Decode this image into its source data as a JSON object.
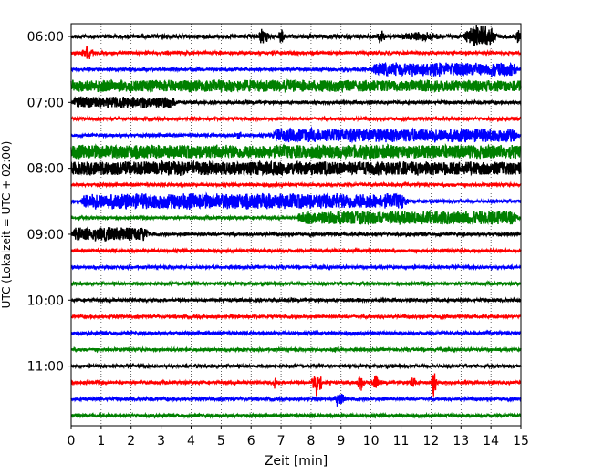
{
  "chart_data": {
    "type": "line",
    "title": "",
    "xlabel": "Zeit  [min]",
    "ylabel": "UTC (Lokalzeit = UTC + 02:00)",
    "xlim": [
      0,
      15
    ],
    "x_ticks": [
      0,
      1,
      2,
      3,
      4,
      5,
      6,
      7,
      8,
      9,
      10,
      11,
      12,
      13,
      14,
      15
    ],
    "y_tick_labels": [
      "06:00",
      "07:00",
      "08:00",
      "09:00",
      "10:00",
      "11:00"
    ],
    "grid": "vertical dotted lines at each minute",
    "trace_interval_minutes": 15,
    "colors": [
      "#000000",
      "#ff0000",
      "#0000ff",
      "#008000"
    ],
    "traces": [
      {
        "start": "06:00",
        "color": "#000000",
        "baseline": 2,
        "segments": [
          [
            6.2,
            6.6,
            9,
            "burst"
          ],
          [
            6.9,
            7.15,
            10,
            "burst"
          ],
          [
            10.2,
            10.5,
            8,
            "burst"
          ],
          [
            10.8,
            12.6,
            5,
            "burst"
          ],
          [
            13.0,
            14.3,
            12,
            "burst"
          ],
          [
            14.8,
            15.0,
            8,
            "burst"
          ]
        ]
      },
      {
        "start": "06:15",
        "color": "#ff0000",
        "baseline": 1.5,
        "segments": [
          [
            0.3,
            0.8,
            7,
            "burst"
          ]
        ]
      },
      {
        "start": "06:30",
        "color": "#0000ff",
        "baseline": 1.5,
        "segments": [
          [
            10.0,
            15.0,
            7,
            "sustained"
          ]
        ]
      },
      {
        "start": "06:45",
        "color": "#008000",
        "baseline": 6,
        "segments": [
          [
            0.0,
            15.0,
            6,
            "sustained"
          ]
        ]
      },
      {
        "start": "07:00",
        "color": "#000000",
        "baseline": 1.5,
        "segments": [
          [
            0.0,
            3.6,
            6,
            "sustained"
          ]
        ]
      },
      {
        "start": "07:15",
        "color": "#ff0000",
        "baseline": 1.5,
        "segments": []
      },
      {
        "start": "07:30",
        "color": "#0000ff",
        "baseline": 1.5,
        "segments": [
          [
            5.5,
            5.7,
            5,
            "burst"
          ],
          [
            6.7,
            15.0,
            7,
            "sustained"
          ]
        ]
      },
      {
        "start": "07:45",
        "color": "#008000",
        "baseline": 7,
        "segments": [
          [
            0.0,
            15.0,
            7,
            "sustained"
          ]
        ]
      },
      {
        "start": "08:00",
        "color": "#000000",
        "baseline": 7,
        "segments": [
          [
            0.0,
            12.5,
            7,
            "sustained"
          ]
        ]
      },
      {
        "start": "08:15",
        "color": "#ff0000",
        "baseline": 1.5,
        "segments": []
      },
      {
        "start": "08:30",
        "color": "#0000ff",
        "baseline": 1.5,
        "segments": [
          [
            0.3,
            11.3,
            8,
            "sustained"
          ]
        ]
      },
      {
        "start": "08:45",
        "color": "#008000",
        "baseline": 1.5,
        "segments": [
          [
            7.5,
            15.0,
            7,
            "sustained"
          ]
        ]
      },
      {
        "start": "09:00",
        "color": "#000000",
        "baseline": 1.5,
        "segments": [
          [
            0.0,
            2.7,
            7,
            "sustained"
          ]
        ]
      },
      {
        "start": "09:15",
        "color": "#ff0000",
        "baseline": 1.5,
        "segments": []
      },
      {
        "start": "09:30",
        "color": "#0000ff",
        "baseline": 1.5,
        "segments": []
      },
      {
        "start": "09:45",
        "color": "#008000",
        "baseline": 1.5,
        "segments": []
      },
      {
        "start": "10:00",
        "color": "#000000",
        "baseline": 1.5,
        "segments": [
          [
            9.5,
            9.7,
            3,
            "burst"
          ]
        ]
      },
      {
        "start": "10:15",
        "color": "#ff0000",
        "baseline": 1.5,
        "segments": []
      },
      {
        "start": "10:30",
        "color": "#0000ff",
        "baseline": 1.5,
        "segments": []
      },
      {
        "start": "10:45",
        "color": "#008000",
        "baseline": 1.5,
        "segments": [
          [
            8.7,
            8.9,
            3,
            "burst"
          ]
        ]
      },
      {
        "start": "11:00",
        "color": "#000000",
        "baseline": 1.5,
        "segments": []
      },
      {
        "start": "11:15",
        "color": "#ff0000",
        "baseline": 1.5,
        "segments": [
          [
            6.7,
            6.9,
            6,
            "burst"
          ],
          [
            8.0,
            8.4,
            14,
            "burst"
          ],
          [
            9.5,
            9.8,
            9,
            "burst"
          ],
          [
            10.0,
            10.3,
            9,
            "burst"
          ],
          [
            11.3,
            11.5,
            7,
            "burst"
          ],
          [
            12.0,
            12.2,
            16,
            "burst"
          ]
        ]
      },
      {
        "start": "11:30",
        "color": "#0000ff",
        "baseline": 1.5,
        "segments": [
          [
            8.7,
            9.2,
            8,
            "burst"
          ]
        ]
      },
      {
        "start": "11:45",
        "color": "#008000",
        "baseline": 1.5,
        "segments": []
      }
    ]
  }
}
